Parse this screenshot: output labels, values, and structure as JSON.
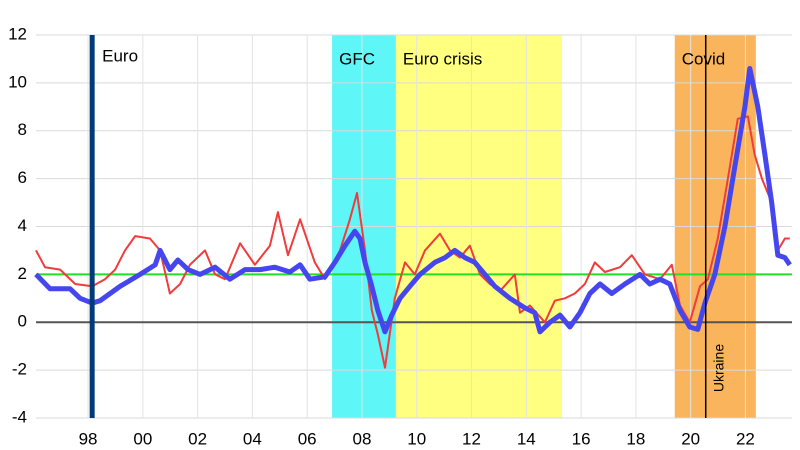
{
  "chart_data": {
    "type": "line",
    "xlim": [
      1996.1,
      2023.7
    ],
    "ylim": [
      -4,
      12
    ],
    "yticks": [
      -4,
      -2,
      0,
      2,
      4,
      6,
      8,
      10,
      12
    ],
    "xticks": [
      {
        "value": 1998,
        "label": "98"
      },
      {
        "value": 2000,
        "label": "00"
      },
      {
        "value": 2002,
        "label": "02"
      },
      {
        "value": 2004,
        "label": "04"
      },
      {
        "value": 2006,
        "label": "06"
      },
      {
        "value": 2008,
        "label": "08"
      },
      {
        "value": 2010,
        "label": "10"
      },
      {
        "value": 2012,
        "label": "12"
      },
      {
        "value": 2014,
        "label": "14"
      },
      {
        "value": 2016,
        "label": "16"
      },
      {
        "value": 2018,
        "label": "18"
      },
      {
        "value": 2020,
        "label": "20"
      },
      {
        "value": 2022,
        "label": "22"
      }
    ],
    "grid": true,
    "bands": [
      {
        "text": "GFC",
        "start": 2006.91,
        "end": 2009.24,
        "color": "#5ef6f6"
      },
      {
        "text": "Euro crisis",
        "start": 2009.24,
        "end": 2015.3,
        "color": "#ffff80"
      },
      {
        "text": "Covid",
        "start": 2019.42,
        "end": 2022.38,
        "color": "#f9b45c"
      }
    ],
    "event_lines": [
      {
        "text": "Euro",
        "x": 1998.15,
        "color": "#003a78"
      },
      {
        "text": "Ukraine",
        "x": 2020.55,
        "color": "#000000"
      }
    ],
    "reference_lines": [
      {
        "value": 2,
        "color": "#22e022"
      },
      {
        "value": 0,
        "color": "#555555"
      }
    ],
    "series": [
      {
        "color": "#f03c3c",
        "x": [
          1996.1,
          1996.43,
          1996.98,
          1997.53,
          1998.15,
          1998.62,
          1998.99,
          1999.35,
          1999.72,
          2000.26,
          2000.63,
          2000.99,
          2001.36,
          2001.72,
          2002.27,
          2002.64,
          2003.0,
          2003.55,
          2004.09,
          2004.64,
          2004.93,
          2005.3,
          2005.74,
          2006.28,
          2006.65,
          2007.2,
          2007.56,
          2007.82,
          2008.11,
          2008.36,
          2008.58,
          2008.84,
          2009.2,
          2009.57,
          2009.93,
          2010.3,
          2010.85,
          2011.21,
          2011.58,
          2011.94,
          2012.31,
          2012.67,
          2013.04,
          2013.58,
          2013.77,
          2014.13,
          2014.68,
          2015.04,
          2015.41,
          2015.77,
          2016.14,
          2016.5,
          2016.87,
          2017.42,
          2017.85,
          2018.33,
          2018.88,
          2019.31,
          2019.61,
          2019.97,
          2020.34,
          2020.63,
          2020.99,
          2021.36,
          2021.72,
          2022.09,
          2022.34,
          2022.6,
          2022.96,
          2023.18,
          2023.44,
          2023.62
        ],
        "values": [
          3.0,
          2.3,
          2.2,
          1.6,
          1.5,
          1.8,
          2.2,
          3.0,
          3.6,
          3.5,
          3.0,
          1.2,
          1.6,
          2.4,
          3.0,
          2.0,
          1.8,
          3.3,
          2.4,
          3.2,
          4.6,
          2.8,
          4.3,
          2.5,
          1.8,
          3.0,
          4.3,
          5.4,
          3.0,
          0.5,
          -0.5,
          -1.9,
          1.0,
          2.5,
          2.0,
          3.0,
          3.7,
          3.0,
          2.7,
          3.2,
          2.0,
          1.6,
          1.3,
          2.0,
          0.4,
          0.7,
          0.0,
          0.9,
          1.0,
          1.2,
          1.6,
          2.5,
          2.1,
          2.3,
          2.8,
          2.0,
          1.8,
          2.4,
          0.7,
          0.0,
          1.5,
          1.8,
          3.5,
          6.0,
          8.5,
          8.6,
          7.0,
          6.0,
          5.0,
          3.0,
          3.5,
          3.5
        ]
      },
      {
        "color": "#4646ee",
        "x": [
          1996.1,
          1996.61,
          1997.34,
          1997.71,
          1998.15,
          1998.44,
          1999.17,
          1999.9,
          2000.45,
          2000.63,
          2000.99,
          2001.28,
          2001.65,
          2002.09,
          2002.64,
          2003.18,
          2003.73,
          2004.28,
          2004.82,
          2005.37,
          2005.74,
          2006.1,
          2006.65,
          2007.01,
          2007.38,
          2007.74,
          2007.93,
          2008.11,
          2008.36,
          2008.58,
          2008.84,
          2009.09,
          2009.39,
          2009.75,
          2010.12,
          2010.66,
          2011.03,
          2011.39,
          2011.76,
          2012.12,
          2012.49,
          2012.85,
          2013.4,
          2013.95,
          2014.31,
          2014.5,
          2014.86,
          2015.23,
          2015.59,
          2015.96,
          2016.32,
          2016.69,
          2017.12,
          2017.6,
          2018.15,
          2018.51,
          2018.88,
          2019.24,
          2019.61,
          2019.97,
          2020.26,
          2020.52,
          2020.88,
          2021.25,
          2021.61,
          2021.98,
          2022.16,
          2022.45,
          2022.71,
          2022.96,
          2023.18,
          2023.44,
          2023.62
        ],
        "values": [
          2.0,
          1.4,
          1.4,
          1.0,
          0.8,
          0.9,
          1.5,
          2.0,
          2.4,
          3.0,
          2.2,
          2.6,
          2.2,
          2.0,
          2.3,
          1.8,
          2.2,
          2.2,
          2.3,
          2.1,
          2.4,
          1.8,
          1.9,
          2.5,
          3.2,
          3.8,
          3.5,
          2.5,
          1.5,
          0.5,
          -0.4,
          0.3,
          1.0,
          1.5,
          2.0,
          2.5,
          2.7,
          3.0,
          2.7,
          2.5,
          2.0,
          1.5,
          1.0,
          0.6,
          0.4,
          -0.4,
          0.0,
          0.3,
          -0.2,
          0.4,
          1.2,
          1.6,
          1.2,
          1.6,
          2.0,
          1.6,
          1.8,
          1.6,
          0.5,
          -0.2,
          -0.3,
          0.8,
          2.0,
          4.0,
          6.5,
          9.0,
          10.6,
          9.0,
          7.0,
          5.0,
          2.8,
          2.7,
          2.4
        ]
      }
    ]
  }
}
